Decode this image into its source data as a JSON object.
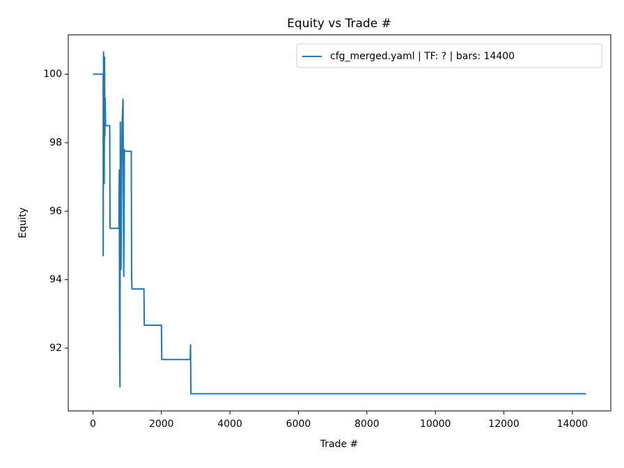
{
  "chart_data": {
    "type": "line",
    "title": "Equity vs Trade #",
    "x_label": "Trade #",
    "y_label": "Equity",
    "x": [
      0,
      300,
      300,
      310,
      320,
      330,
      340,
      350,
      360,
      370,
      380,
      490,
      500,
      760,
      770,
      780,
      790,
      800,
      820,
      850,
      880,
      900,
      920,
      940,
      960,
      1120,
      1130,
      1140,
      1490,
      1500,
      2000,
      2010,
      2840,
      2850,
      2860,
      14400
    ],
    "series": [
      {
        "name": "cfg_merged.yaml | TF: ? | bars: 14400",
        "color": "#1f77b4",
        "values": [
          100,
          100,
          94.7,
          100.65,
          99.2,
          96.8,
          100.5,
          98.2,
          99.3,
          98.5,
          98.5,
          98.5,
          95.5,
          95.5,
          97.2,
          92.0,
          90.87,
          98.6,
          94.3,
          98.5,
          99.27,
          94.1,
          97.8,
          97.75,
          97.75,
          97.75,
          94.1,
          93.73,
          93.73,
          92.67,
          92.67,
          91.67,
          91.67,
          92.1,
          90.67,
          90.67
        ]
      }
    ],
    "xlim": [
      -720,
      15120
    ],
    "ylim": [
      90.17,
      101.15
    ],
    "xticks": [
      0,
      2000,
      4000,
      6000,
      8000,
      10000,
      12000,
      14000
    ],
    "yticks": [
      92,
      94,
      96,
      98,
      100
    ],
    "grid": false,
    "legend": "upper right"
  }
}
